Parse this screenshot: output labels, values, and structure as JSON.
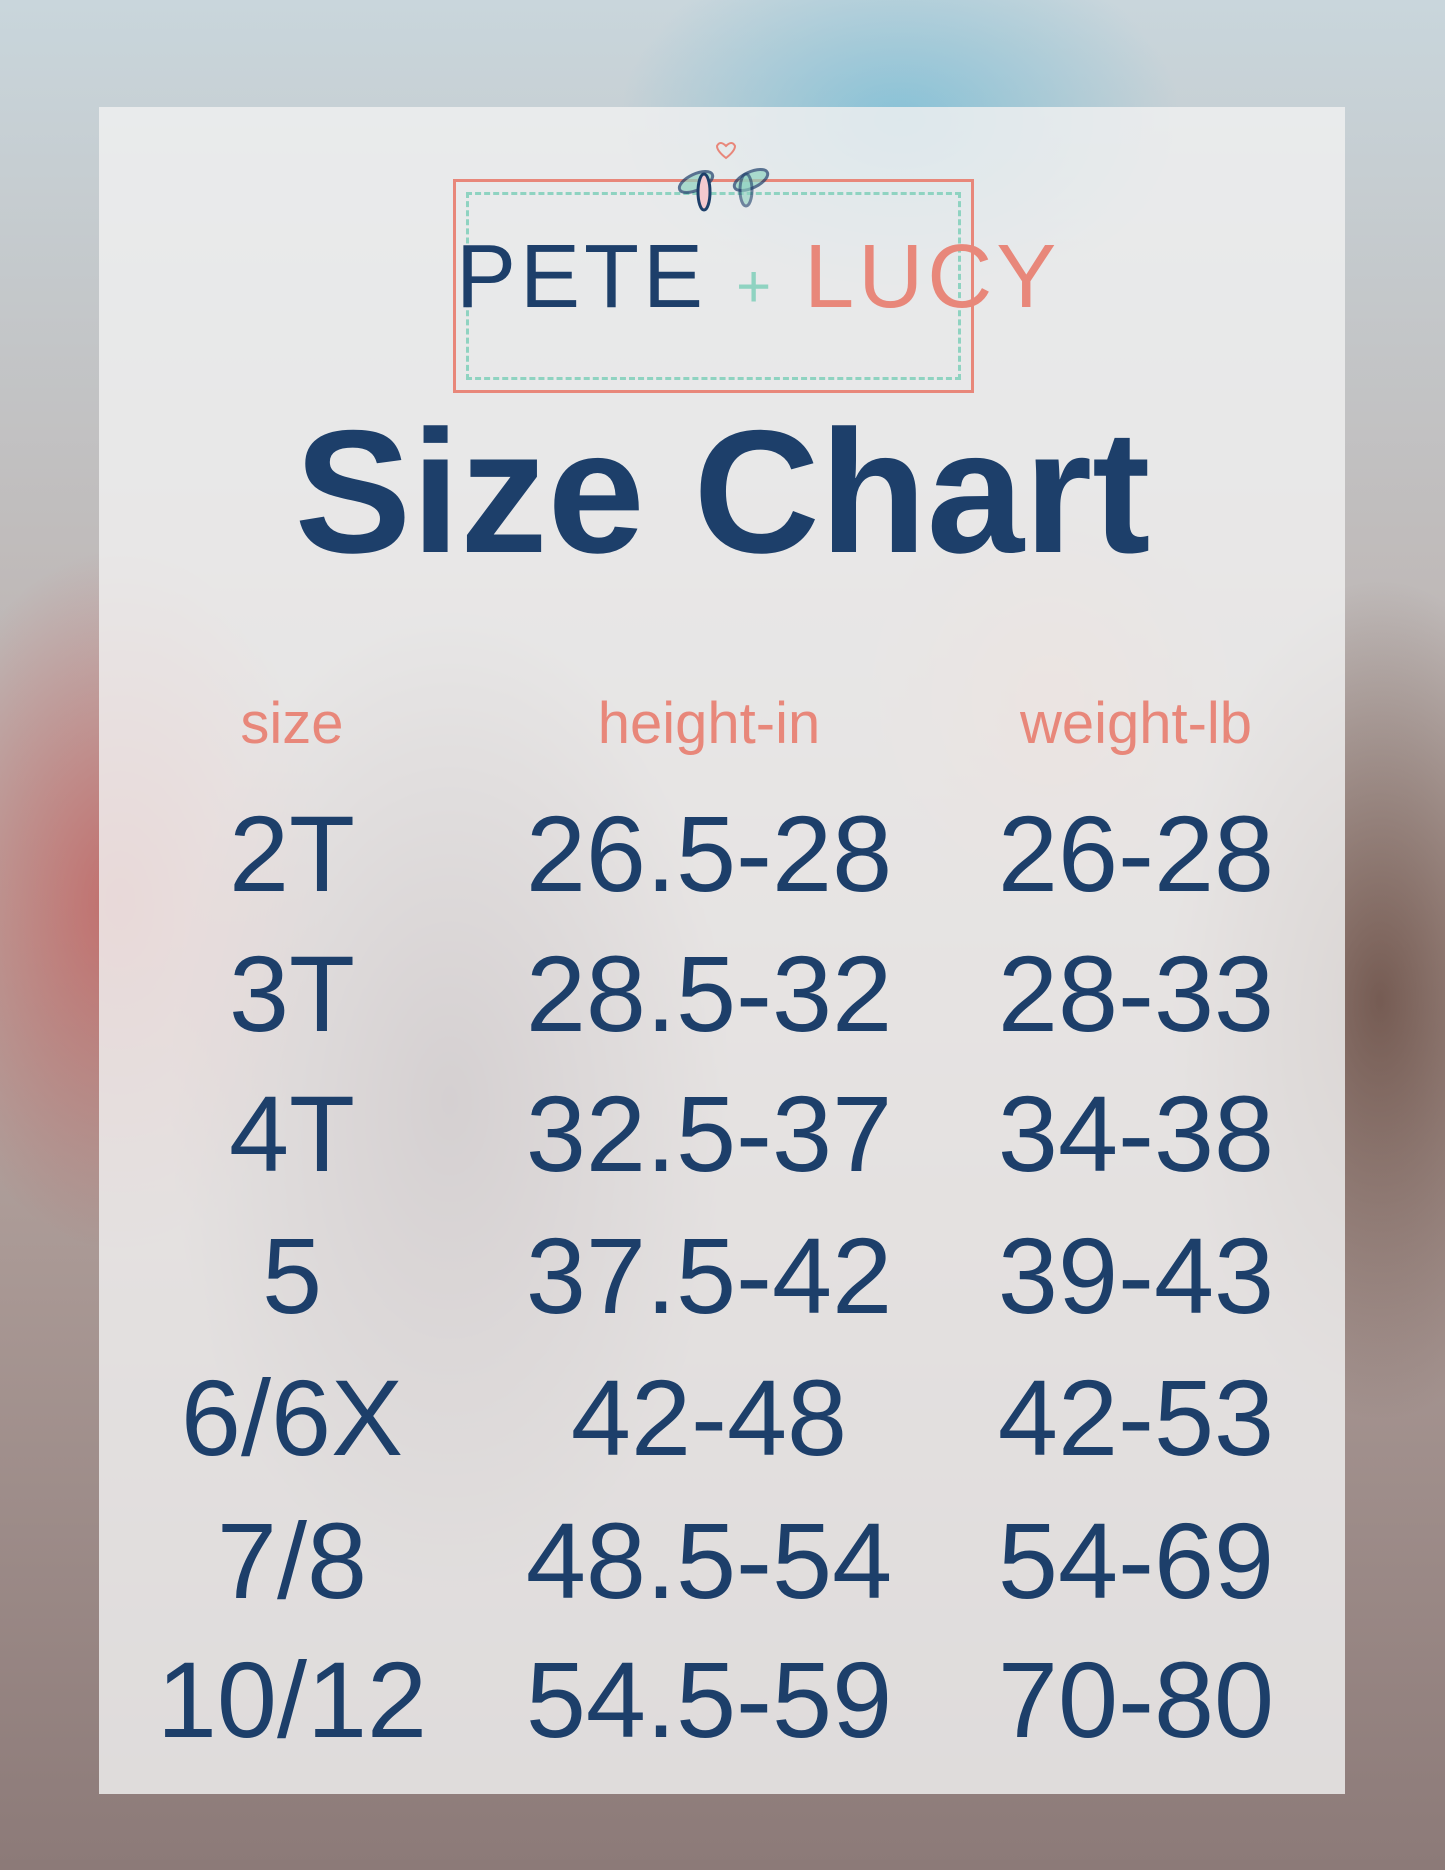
{
  "logo": {
    "brand_left": "PETE",
    "plus": "+",
    "brand_right": "LUCY"
  },
  "title": "Size Chart",
  "colors": {
    "navy": "#1d3f6a",
    "coral": "#e8877a",
    "mint": "#8fd3c1"
  },
  "table": {
    "headers": [
      "size",
      "height-in",
      "weight-lb"
    ],
    "rows": [
      [
        "2T",
        "26.5-28",
        "26-28"
      ],
      [
        "3T",
        "28.5-32",
        "28-33"
      ],
      [
        "4T",
        "32.5-37",
        "34-38"
      ],
      [
        "5",
        "37.5-42",
        "39-43"
      ],
      [
        "6/6X",
        "42-48",
        "42-53"
      ],
      [
        "7/8",
        "48.5-54",
        "54-69"
      ],
      [
        "10/12",
        "54.5-59",
        "70-80"
      ]
    ]
  }
}
